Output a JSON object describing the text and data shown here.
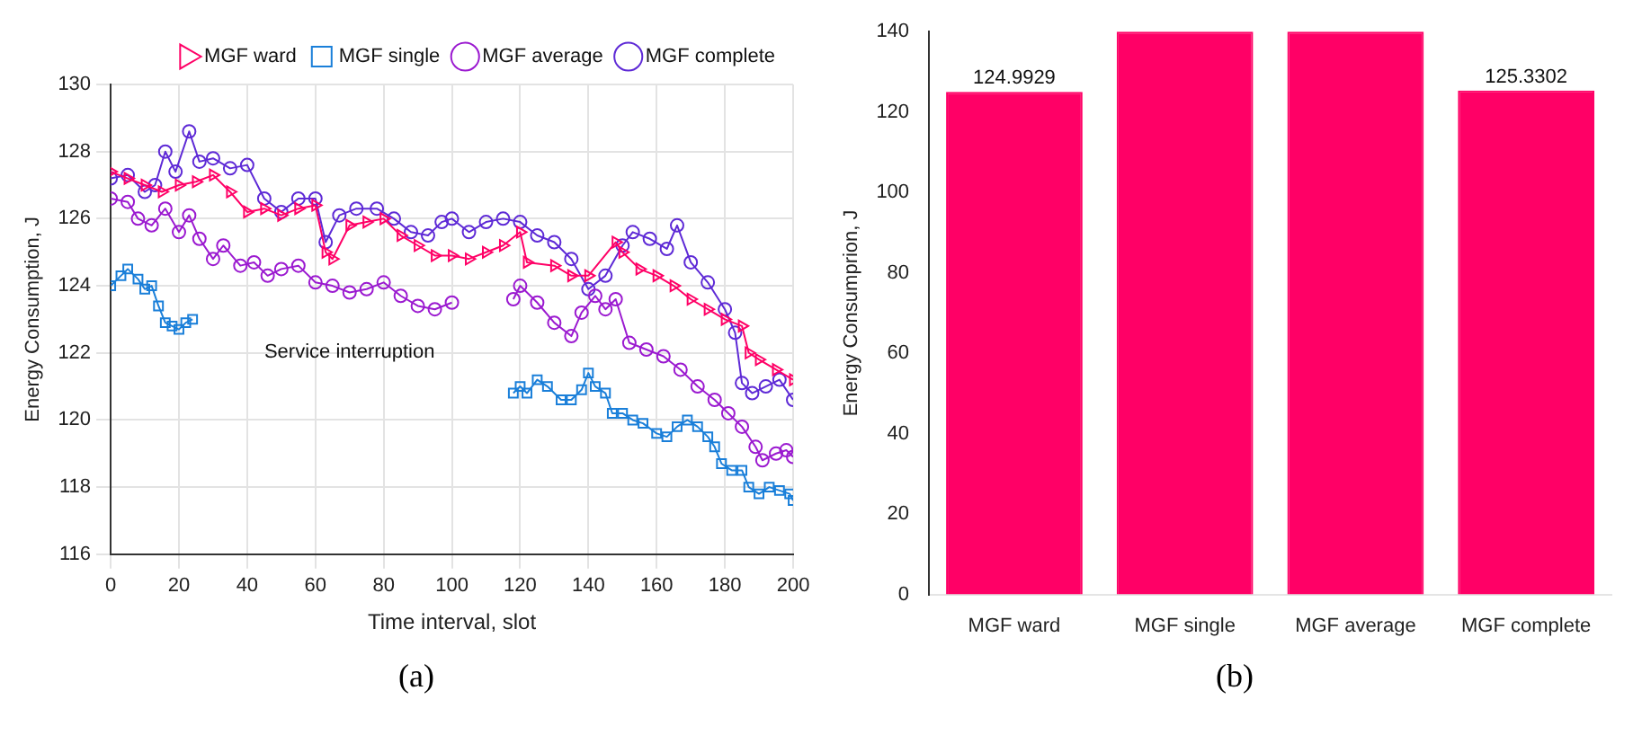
{
  "chart_data": [
    {
      "type": "line",
      "xlabel": "Time interval, slot",
      "ylabel": "Energy Consumption, J",
      "xlim": [
        0,
        200
      ],
      "xticks": [
        0,
        20,
        40,
        60,
        80,
        100,
        120,
        140,
        160,
        180,
        200
      ],
      "ylim": [
        116,
        130
      ],
      "yticks": [
        116,
        118,
        120,
        122,
        124,
        126,
        128,
        130
      ],
      "grid": true,
      "legend": "top right",
      "annotations": [
        "Service interruption",
        "(a)"
      ],
      "series": [
        {
          "name": "MGF ward",
          "color": "#ff0066",
          "marker": "triangle",
          "x": [
            0,
            5,
            10,
            15,
            20,
            25,
            30,
            35,
            40,
            45,
            50,
            55,
            60,
            63,
            65,
            70,
            75,
            80,
            85,
            90,
            95,
            100,
            105,
            110,
            115,
            120,
            122,
            130,
            135,
            140,
            148,
            150,
            155,
            160,
            165,
            170,
            175,
            180,
            185,
            187,
            190,
            195,
            200
          ],
          "values": [
            127.4,
            127.2,
            127.0,
            126.8,
            127.0,
            127.1,
            127.3,
            126.8,
            126.2,
            126.3,
            126.1,
            126.3,
            126.4,
            125.0,
            124.8,
            125.8,
            125.9,
            126.0,
            125.5,
            125.2,
            124.9,
            124.9,
            124.8,
            125.0,
            125.2,
            125.6,
            124.7,
            124.6,
            124.3,
            124.3,
            125.3,
            125.0,
            124.5,
            124.3,
            124.0,
            123.6,
            123.3,
            123.0,
            122.8,
            122.0,
            121.8,
            121.5,
            121.2
          ]
        },
        {
          "name": "MGF single",
          "color": "#1a7fd9",
          "marker": "square",
          "x": [
            0,
            3,
            5,
            8,
            10,
            12,
            14,
            16,
            18,
            20,
            22,
            24,
            70,
            118,
            120,
            122,
            125,
            128,
            132,
            135,
            138,
            140,
            142,
            145,
            147,
            150,
            153,
            156,
            160,
            163,
            166,
            169,
            172,
            175,
            177,
            179,
            182,
            185,
            187,
            190,
            193,
            196,
            199,
            200
          ],
          "values": [
            124.0,
            124.3,
            124.5,
            124.2,
            123.9,
            124.0,
            123.4,
            122.9,
            122.8,
            122.7,
            122.9,
            123.0,
            null,
            120.8,
            121.0,
            120.8,
            121.2,
            121.0,
            120.6,
            120.6,
            120.9,
            121.4,
            121.0,
            120.8,
            120.2,
            120.2,
            120.0,
            119.9,
            119.6,
            119.5,
            119.8,
            120.0,
            119.8,
            119.5,
            119.2,
            118.7,
            118.5,
            118.5,
            118.0,
            117.8,
            118.0,
            117.9,
            117.8,
            117.6
          ]
        },
        {
          "name": "MGF average",
          "color": "#9b1ad0",
          "marker": "circle",
          "x": [
            0,
            5,
            8,
            12,
            16,
            20,
            23,
            26,
            30,
            33,
            38,
            42,
            46,
            50,
            55,
            60,
            65,
            70,
            75,
            80,
            85,
            90,
            95,
            100,
            108,
            118,
            120,
            125,
            130,
            135,
            138,
            142,
            145,
            148,
            152,
            157,
            162,
            167,
            172,
            177,
            181,
            185,
            189,
            191,
            195,
            198,
            200
          ],
          "values": [
            126.6,
            126.5,
            126.0,
            125.8,
            126.3,
            125.6,
            126.1,
            125.4,
            124.8,
            125.2,
            124.6,
            124.7,
            124.3,
            124.5,
            124.6,
            124.1,
            124.0,
            123.8,
            123.9,
            124.1,
            123.7,
            123.4,
            123.3,
            123.5,
            null,
            123.6,
            124.0,
            123.5,
            122.9,
            122.5,
            123.2,
            123.7,
            123.3,
            123.6,
            122.3,
            122.1,
            121.9,
            121.5,
            121.0,
            120.6,
            120.2,
            119.8,
            119.2,
            118.8,
            119.0,
            119.1,
            118.9
          ]
        },
        {
          "name": "MGF complete",
          "color": "#5e2ad6",
          "marker": "circle",
          "x": [
            0,
            5,
            10,
            13,
            16,
            19,
            23,
            26,
            30,
            35,
            40,
            45,
            50,
            55,
            60,
            63,
            67,
            72,
            78,
            83,
            88,
            93,
            97,
            100,
            105,
            110,
            115,
            120,
            125,
            130,
            135,
            140,
            145,
            150,
            153,
            158,
            163,
            166,
            170,
            175,
            180,
            183,
            185,
            188,
            192,
            196,
            200
          ],
          "values": [
            127.2,
            127.3,
            126.8,
            127.0,
            128.0,
            127.4,
            128.6,
            127.7,
            127.8,
            127.5,
            127.6,
            126.6,
            126.2,
            126.6,
            126.6,
            125.3,
            126.1,
            126.3,
            126.3,
            126.0,
            125.6,
            125.5,
            125.9,
            126.0,
            125.6,
            125.9,
            126.0,
            125.9,
            125.5,
            125.3,
            124.8,
            123.9,
            124.3,
            125.2,
            125.6,
            125.4,
            125.1,
            125.8,
            124.7,
            124.1,
            123.3,
            122.6,
            121.1,
            120.8,
            121.0,
            121.2,
            120.6
          ]
        }
      ]
    },
    {
      "type": "bar",
      "ylabel": "Energy Consumprion, J",
      "categories": [
        "MGF ward",
        "MGF single",
        "MGF average",
        "MGF complete"
      ],
      "values": [
        124.9929,
        140,
        140,
        125.3302
      ],
      "value_labels": [
        "124.9929",
        null,
        null,
        "125.3302"
      ],
      "color": "#ff0066",
      "ylim": [
        0,
        140
      ],
      "yticks": [
        0,
        20,
        40,
        60,
        80,
        100,
        120,
        140
      ],
      "annotations": [
        "(b)"
      ]
    }
  ]
}
